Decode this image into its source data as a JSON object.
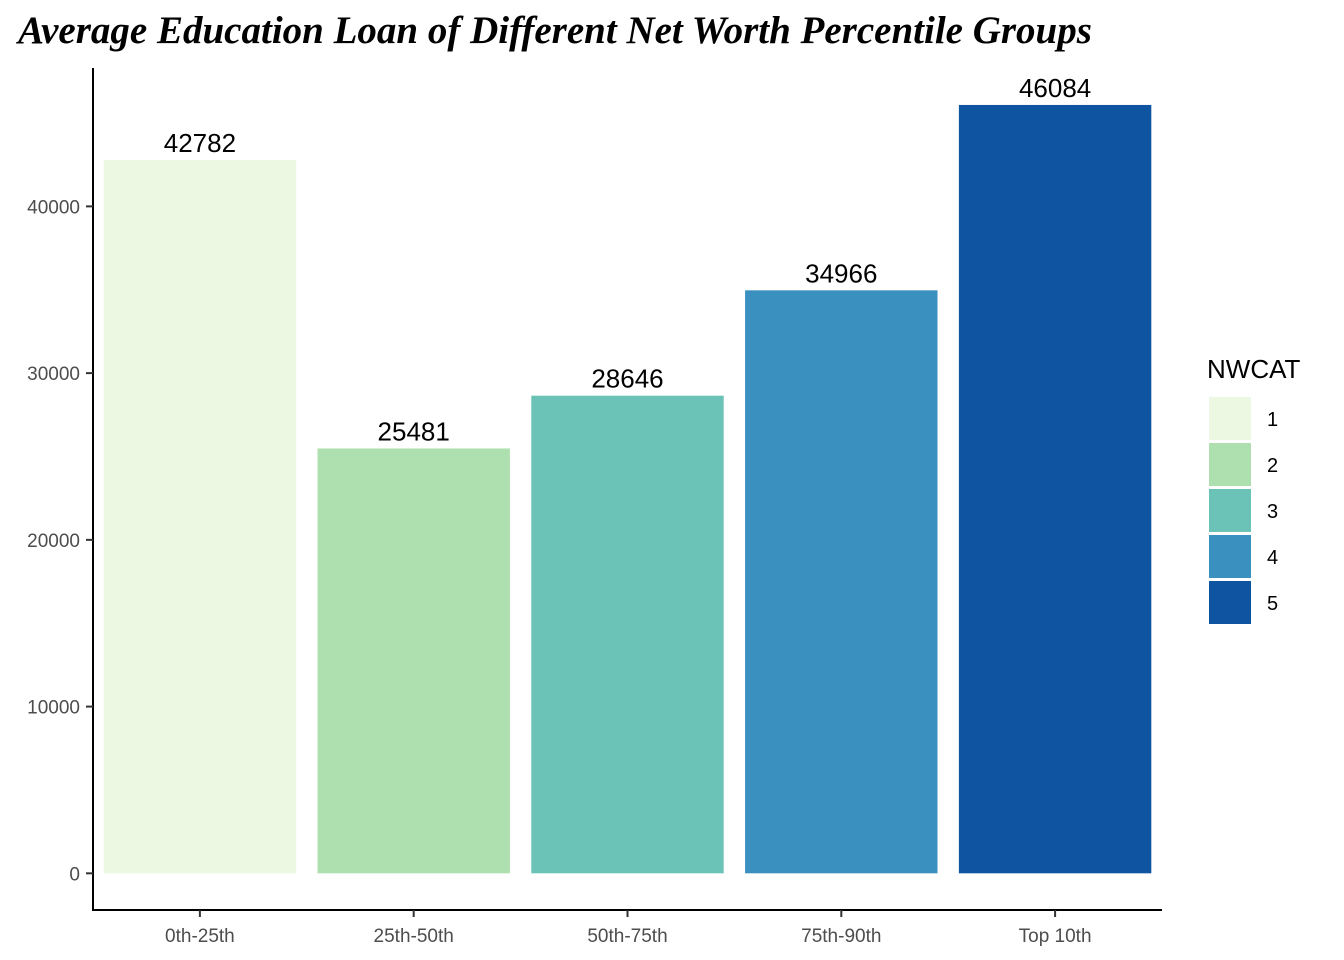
{
  "chart_data": {
    "type": "bar",
    "title": "Average Education Loan of Different Net Worth Percentile Groups",
    "xlabel": "",
    "ylabel": "",
    "categories": [
      "0th-25th",
      "25th-50th",
      "50th-75th",
      "75th-90th",
      "Top 10th"
    ],
    "values": [
      42782,
      25481,
      28646,
      34966,
      46084
    ],
    "data_labels": [
      "42782",
      "25481",
      "28646",
      "34966",
      "46084"
    ],
    "colors": [
      "#EDF8E2",
      "#AEDFAF",
      "#6BC3B8",
      "#3A91C0",
      "#0F54A0"
    ],
    "ylim": [
      -2200,
      48300
    ],
    "yticks": [
      0,
      10000,
      20000,
      30000,
      40000
    ],
    "grid": false,
    "legend": {
      "title": "NWCAT",
      "position": "right",
      "entries": [
        "1",
        "2",
        "3",
        "4",
        "5"
      ]
    }
  }
}
